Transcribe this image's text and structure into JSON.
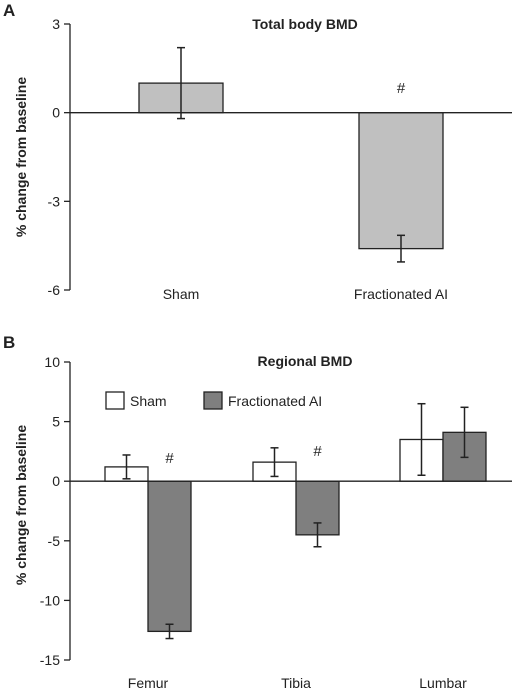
{
  "chart_data": [
    {
      "panel": "A",
      "type": "bar",
      "title": "Total body BMD",
      "ylabel": "% change from baseline",
      "xlabel": "",
      "ylim": [
        -6,
        3
      ],
      "yticks": [
        3,
        0,
        -3,
        -6
      ],
      "categories": [
        "Sham",
        "Fractionated AI"
      ],
      "series": [
        {
          "values": [
            1.0,
            -4.6
          ],
          "errors": [
            1.2,
            0.45
          ],
          "color": "#c0c0c0"
        }
      ],
      "annotations": [
        {
          "category": 1,
          "text": "#"
        }
      ]
    },
    {
      "panel": "B",
      "type": "bar",
      "title": "Regional BMD",
      "ylabel": "% change from baseline",
      "xlabel": "",
      "ylim": [
        -15,
        10
      ],
      "yticks": [
        10,
        5,
        0,
        -5,
        -10,
        -15
      ],
      "categories": [
        "Femur",
        "Tibia",
        "Lumbar"
      ],
      "legend_position": "top-left",
      "series": [
        {
          "name": "Sham",
          "values": [
            1.2,
            1.6,
            3.5
          ],
          "errors": [
            1.0,
            1.2,
            3.0
          ],
          "color": "#ffffff"
        },
        {
          "name": "Fractionated AI",
          "values": [
            -12.6,
            -4.5,
            4.1
          ],
          "errors": [
            0.6,
            1.0,
            2.1
          ],
          "color": "#7f7f7f"
        }
      ],
      "annotations": [
        {
          "category": 0,
          "text": "#"
        },
        {
          "category": 1,
          "text": "#"
        }
      ]
    }
  ]
}
